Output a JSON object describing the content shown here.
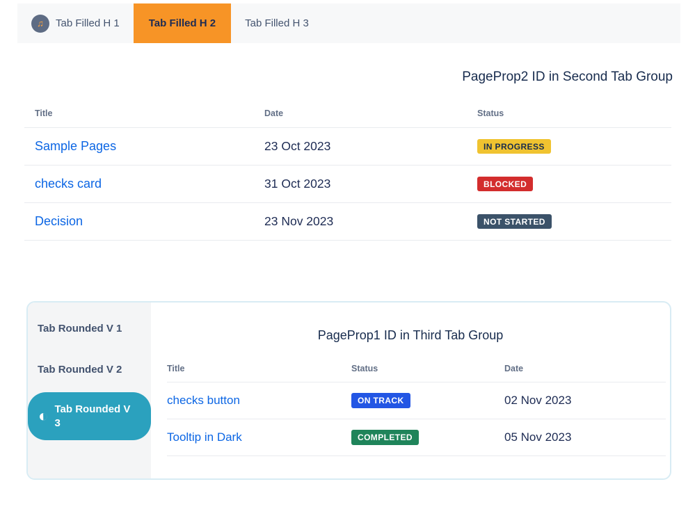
{
  "colors": {
    "page_background": "#FFFFFF",
    "tabbar_background": "#F7F8F9",
    "active_htab_background": "#F79426",
    "active_vtab_background": "#2BA1BE",
    "card_border": "#D8ECF4",
    "link_blue": "#0C66E4",
    "heading_text": "#172B4D",
    "table_header_text": "#626F86",
    "status": {
      "in_progress": "#F0C330",
      "blocked": "#D32D2D",
      "not_started": "#3B5269",
      "on_track": "#2356E4",
      "completed": "#1F845A"
    }
  },
  "top_tab_group": {
    "active_tab": "Tab Filled H 2",
    "tabs": [
      {
        "label": "Tab Filled H 1",
        "icon": "music-note-icon",
        "icon_glyph": "♫"
      },
      {
        "label": "Tab Filled H 2"
      },
      {
        "label": "Tab Filled H 3"
      }
    ]
  },
  "second_tab_group": {
    "heading": "PageProp2 ID in Second Tab Group",
    "columns": {
      "title": "Title",
      "date": "Date",
      "status": "Status"
    },
    "rows": [
      {
        "title": "Sample Pages",
        "date": "23 Oct 2023",
        "status": "IN PROGRESS",
        "status_color": "#F0C330",
        "status_text_color": "#172B4D"
      },
      {
        "title": "checks card",
        "date": "31 Oct 2023",
        "status": "BLOCKED",
        "status_color": "#D32D2D",
        "status_text_color": "#FFFFFF"
      },
      {
        "title": "Decision",
        "date": "23 Nov 2023",
        "status": "NOT STARTED",
        "status_color": "#3B5269",
        "status_text_color": "#FFFFFF"
      }
    ]
  },
  "third_tab_group": {
    "active_tab": "Tab Rounded V 3",
    "tabs": [
      {
        "label": "Tab Rounded V 1"
      },
      {
        "label": "Tab Rounded V 2"
      },
      {
        "label": "Tab Rounded V 3",
        "icon": "contrast-icon",
        "icon_glyph": "◐"
      }
    ],
    "heading": "PageProp1 ID in Third Tab Group",
    "columns": {
      "title": "Title",
      "status": "Status",
      "date": "Date"
    },
    "rows": [
      {
        "title": "checks button",
        "status": "ON TRACK",
        "date": "02 Nov 2023",
        "status_color": "#2356E4",
        "status_text_color": "#FFFFFF"
      },
      {
        "title": "Tooltip in Dark",
        "status": "COMPLETED",
        "date": "05 Nov 2023",
        "status_color": "#1F845A",
        "status_text_color": "#FFFFFF"
      }
    ]
  }
}
